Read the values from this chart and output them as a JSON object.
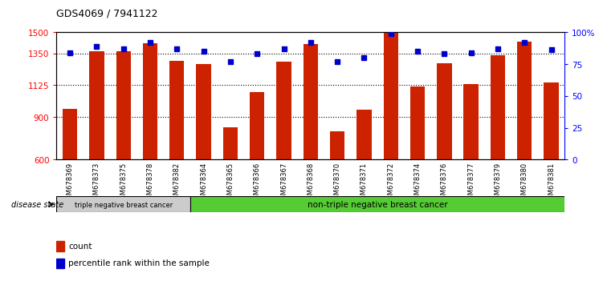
{
  "title": "GDS4069 / 7941122",
  "samples": [
    "GSM678369",
    "GSM678373",
    "GSM678375",
    "GSM678378",
    "GSM678382",
    "GSM678364",
    "GSM678365",
    "GSM678366",
    "GSM678367",
    "GSM678368",
    "GSM678370",
    "GSM678371",
    "GSM678372",
    "GSM678374",
    "GSM678376",
    "GSM678377",
    "GSM678379",
    "GSM678380",
    "GSM678381"
  ],
  "counts": [
    960,
    1365,
    1365,
    1420,
    1295,
    1275,
    830,
    1075,
    1290,
    1415,
    800,
    950,
    1500,
    1115,
    1280,
    1135,
    1335,
    1430,
    1145
  ],
  "percentile_ranks": [
    84,
    89,
    87,
    92,
    87,
    85,
    77,
    83,
    87,
    92,
    77,
    80,
    99,
    85,
    83,
    84,
    87,
    92,
    86
  ],
  "ylim_left": [
    600,
    1500
  ],
  "ylim_right": [
    0,
    100
  ],
  "yticks_left": [
    600,
    900,
    1125,
    1350,
    1500
  ],
  "yticks_right": [
    0,
    25,
    50,
    75,
    100
  ],
  "bar_color": "#cc2200",
  "dot_color": "#0000cc",
  "group1_label": "triple negative breast cancer",
  "group1_count": 5,
  "group2_label": "non-triple negative breast cancer",
  "group2_count": 14,
  "group1_bg": "#cccccc",
  "group2_bg": "#55cc33",
  "disease_state_label": "disease state",
  "legend_count_label": "count",
  "legend_percentile_label": "percentile rank within the sample",
  "background_color": "#ffffff"
}
